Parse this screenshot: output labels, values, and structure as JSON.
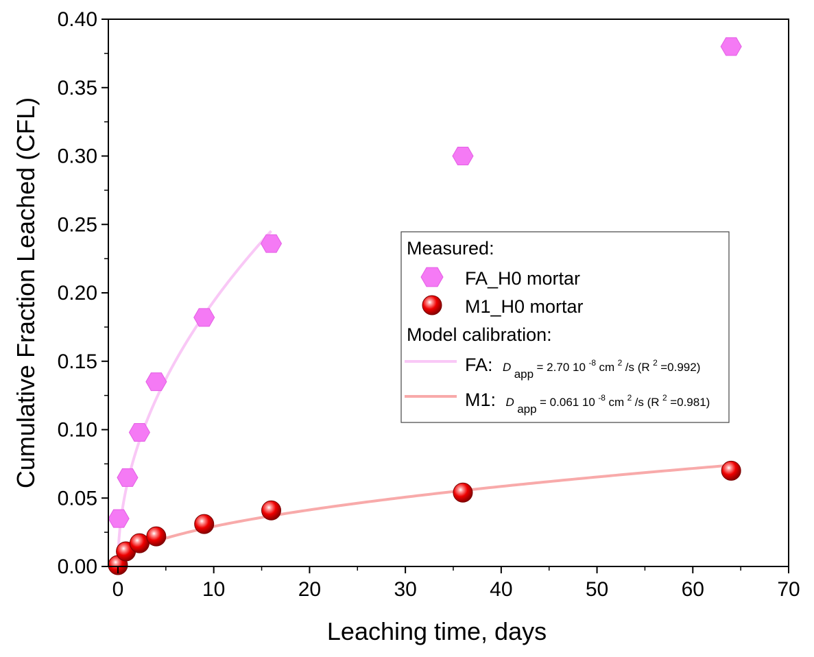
{
  "chart_data": {
    "type": "scatter",
    "title": "",
    "xlabel": "Leaching time, days",
    "ylabel": "Cumulative Fraction Leached (CFL)",
    "xlim": [
      -1,
      70
    ],
    "ylim": [
      0,
      0.4
    ],
    "x_ticks": [
      "0",
      "10",
      "20",
      "30",
      "40",
      "50",
      "60",
      "70"
    ],
    "y_ticks": [
      "0.00",
      "0.05",
      "0.10",
      "0.15",
      "0.20",
      "0.25",
      "0.30",
      "0.35",
      "0.40"
    ],
    "x_tick_values": [
      0,
      10,
      20,
      30,
      40,
      50,
      60,
      70
    ],
    "y_tick_values": [
      0,
      0.05,
      0.1,
      0.15,
      0.2,
      0.25,
      0.3,
      0.35,
      0.4
    ],
    "grid": false,
    "legend_placement": "center-right",
    "series": [
      {
        "name": "FA_H0 mortar",
        "marker": "hexagon",
        "color": "#f57af5",
        "x": [
          0.083,
          1,
          2.25,
          4,
          9,
          16,
          36,
          64
        ],
        "y": [
          0.035,
          0.065,
          0.098,
          0.135,
          0.182,
          0.236,
          0.3,
          0.38
        ]
      },
      {
        "name": "M1_H0 mortar",
        "marker": "sphere",
        "color": "#ee0000",
        "x": [
          0,
          0.833,
          2.25,
          4,
          9,
          16,
          36,
          64
        ],
        "y": [
          0.001,
          0.011,
          0.017,
          0.022,
          0.031,
          0.041,
          0.054,
          0.07
        ]
      }
    ],
    "model_curves": [
      {
        "name": "FA",
        "color": "#f9c8f6",
        "form": "k*sqrt(t)",
        "k": 0.0613,
        "x_range": [
          0,
          16
        ]
      },
      {
        "name": "M1",
        "color": "#f8aaaa",
        "form": "k*sqrt(t)",
        "k": 0.00925,
        "x_range": [
          0,
          64
        ]
      }
    ],
    "legend": {
      "measured_header": "Measured:",
      "fa_label": "FA_H0 mortar",
      "m1_label": "M1_H0 mortar",
      "model_header": "Model calibration:",
      "fa_model_prefix": "FA:",
      "m1_model_prefix": "M1:",
      "d_symbol": "D",
      "d_subscript": "app",
      "fa_value": "= 2.70 10",
      "m1_value": "= 0.061 10",
      "exp": "-8",
      "unit": " cm",
      "unit_exp": "2",
      "unit_tail": "/s (R",
      "r2_exp": "2",
      "fa_r2": "=0.992)",
      "m1_r2": "=0.981)"
    }
  }
}
